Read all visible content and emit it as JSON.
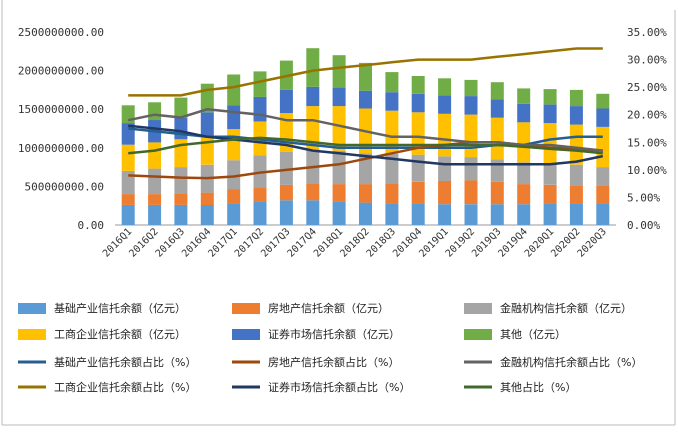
{
  "chart_data": {
    "type": "bar",
    "stacked": true,
    "categories": [
      "2016Q1",
      "2016Q2",
      "2016Q3",
      "2016Q4",
      "2017Q1",
      "2017Q2",
      "2017Q3",
      "2017Q4",
      "2018Q1",
      "2018Q2",
      "2018Q3",
      "2018Q4",
      "2019Q1",
      "2019Q2",
      "2019Q3",
      "2019Q4",
      "2020Q1",
      "2020Q2",
      "2020Q3"
    ],
    "y_left": {
      "ylim": [
        0,
        2500000000
      ],
      "ticks": [
        "0.00",
        "500000000.00",
        "1000000000.00",
        "1500000000.00",
        "2000000000.00",
        "2500000000.00"
      ]
    },
    "y_right": {
      "ylim": [
        0,
        35
      ],
      "ticks": [
        "0.00%",
        "5.00%",
        "10.00%",
        "15.00%",
        "20.00%",
        "25.00%",
        "30.00%",
        "35.00%"
      ]
    },
    "legend_position": "bottom",
    "colors": {
      "infra": "#5b9bd5",
      "realestate": "#ed7d31",
      "financial": "#a5a5a5",
      "industrial": "#ffc000",
      "securities": "#4472c4",
      "other": "#70ad47",
      "l_infra": "#255e91",
      "l_realestate": "#9e480e",
      "l_financial": "#636363",
      "l_industrial": "#997300",
      "l_securities": "#203864",
      "l_other": "#43682b"
    },
    "bar_series": [
      {
        "key": "infra",
        "name": "基础产业信托余额（亿元）",
        "values": [
          260000000,
          260000000,
          260000000,
          260000000,
          280000000,
          300000000,
          320000000,
          320000000,
          300000000,
          290000000,
          280000000,
          280000000,
          270000000,
          270000000,
          270000000,
          270000000,
          280000000,
          280000000,
          280000000
        ]
      },
      {
        "key": "realestate",
        "name": "房地产信托余额（亿元）",
        "values": [
          140000000,
          140000000,
          150000000,
          160000000,
          180000000,
          190000000,
          200000000,
          220000000,
          230000000,
          240000000,
          260000000,
          280000000,
          300000000,
          310000000,
          290000000,
          260000000,
          240000000,
          230000000,
          230000000
        ]
      },
      {
        "key": "financial",
        "name": "金融机构信托余额（亿元）",
        "values": [
          300000000,
          330000000,
          340000000,
          360000000,
          380000000,
          410000000,
          430000000,
          440000000,
          430000000,
          400000000,
          380000000,
          350000000,
          320000000,
          300000000,
          290000000,
          280000000,
          280000000,
          270000000,
          240000000
        ]
      },
      {
        "key": "industrial",
        "name": "工商企业信托余额（亿元）",
        "values": [
          340000000,
          340000000,
          360000000,
          380000000,
          400000000,
          440000000,
          500000000,
          560000000,
          580000000,
          580000000,
          560000000,
          550000000,
          550000000,
          550000000,
          540000000,
          520000000,
          520000000,
          520000000,
          520000000
        ]
      },
      {
        "key": "securities",
        "name": "证券市场信托余额（亿元）",
        "values": [
          280000000,
          290000000,
          280000000,
          300000000,
          310000000,
          320000000,
          300000000,
          250000000,
          240000000,
          230000000,
          240000000,
          240000000,
          240000000,
          240000000,
          240000000,
          240000000,
          240000000,
          240000000,
          240000000
        ]
      },
      {
        "key": "other",
        "name": "其他（亿元）",
        "values": [
          230000000,
          230000000,
          260000000,
          370000000,
          400000000,
          330000000,
          380000000,
          500000000,
          420000000,
          360000000,
          260000000,
          230000000,
          220000000,
          210000000,
          220000000,
          200000000,
          200000000,
          210000000,
          190000000
        ]
      }
    ],
    "line_series": [
      {
        "key": "l_infra",
        "name": "基础产业信托余额占比（%）",
        "values": [
          17.5,
          17,
          16.5,
          16,
          16,
          15.5,
          15,
          14.5,
          14,
          14,
          14,
          14,
          14,
          14,
          14.5,
          14.5,
          15.5,
          16,
          16
        ]
      },
      {
        "key": "l_realestate",
        "name": "房地产信托余额占比（%）",
        "values": [
          9,
          8.8,
          8.6,
          8.5,
          8.8,
          9.5,
          10,
          10.5,
          11,
          12,
          13,
          14,
          14.5,
          15,
          15,
          14.5,
          14,
          13.8,
          13.5
        ]
      },
      {
        "key": "l_financial",
        "name": "金融机构信托余额占比（%）",
        "values": [
          19,
          20,
          19.5,
          21,
          20.5,
          20,
          19,
          19,
          18,
          17,
          16,
          16,
          15.5,
          15,
          15,
          14.5,
          14.5,
          14,
          13.5
        ]
      },
      {
        "key": "l_industrial",
        "name": "工商企业信托余额占比（%）",
        "values": [
          23.5,
          23.5,
          23.5,
          24.5,
          25,
          26,
          27,
          28,
          28.5,
          29,
          29.5,
          30,
          30,
          30,
          30.5,
          31,
          31.5,
          32,
          32
        ]
      },
      {
        "key": "l_securities",
        "name": "证券市场信托余额占比（%）",
        "values": [
          18,
          17.5,
          17,
          16,
          15.5,
          15,
          14.5,
          13.5,
          13,
          12.5,
          12,
          11.5,
          11,
          11,
          11,
          11,
          11,
          11.5,
          12.5
        ]
      },
      {
        "key": "l_other",
        "name": "其他占比（%）",
        "values": [
          13,
          13.5,
          14.5,
          15,
          15.5,
          15.8,
          15.5,
          15,
          14.5,
          14.5,
          14.5,
          14.5,
          14.5,
          14.5,
          14.5,
          14.2,
          13.8,
          13.5,
          13
        ]
      }
    ]
  }
}
